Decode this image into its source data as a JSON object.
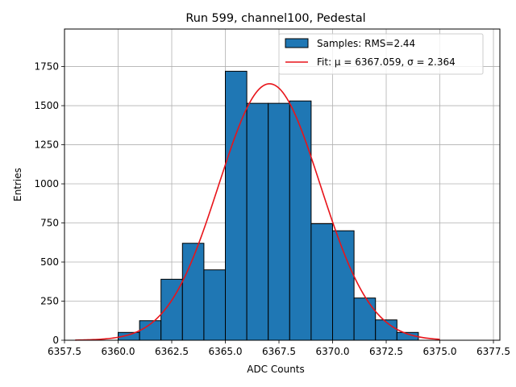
{
  "chart_data": {
    "type": "bar",
    "title": "Run 599, channel100, Pedestal",
    "xlabel": "ADC Counts",
    "ylabel": "Entries",
    "xlim": [
      6357.5,
      6377.8
    ],
    "ylim": [
      0,
      1990
    ],
    "grid": true,
    "legend_position": "top-right",
    "x_ticks": [
      6357.5,
      6360.0,
      6362.5,
      6365.0,
      6367.5,
      6370.0,
      6372.5,
      6375.0,
      6377.5
    ],
    "x_tick_labels": [
      "6357.5",
      "6360.0",
      "6362.5",
      "6365.0",
      "6367.5",
      "6370.0",
      "6372.5",
      "6375.0",
      "6377.5"
    ],
    "y_ticks": [
      0,
      250,
      500,
      750,
      1000,
      1250,
      1500,
      1750
    ],
    "y_tick_labels": [
      "0",
      "250",
      "500",
      "750",
      "1000",
      "1250",
      "1500",
      "1750"
    ],
    "bins": {
      "edges": [
        6360,
        6361,
        6362,
        6363,
        6364,
        6365,
        6366,
        6367,
        6368,
        6369,
        6370,
        6371,
        6372,
        6373,
        6374
      ],
      "counts": [
        50,
        125,
        390,
        620,
        450,
        1720,
        1515,
        1515,
        1530,
        745,
        700,
        270,
        130,
        50
      ]
    },
    "fit": {
      "mu": 6367.059,
      "sigma": 2.364,
      "peak": 1640,
      "x_range": [
        6358,
        6375
      ]
    },
    "series": [
      {
        "name": "Samples: RMS=2.44",
        "type": "histogram",
        "color": "#1f77b4"
      },
      {
        "name": "Fit: μ = 6367.059, σ = 2.364",
        "type": "line",
        "color": "#e8141a"
      }
    ]
  }
}
